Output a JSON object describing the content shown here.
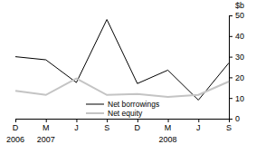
{
  "chart_data": {
    "type": "line",
    "y_label": "$b",
    "categories": [
      "D 2006",
      "M 2007",
      "J",
      "S",
      "D",
      "M 2008",
      "J",
      "S"
    ],
    "series": [
      {
        "name": "Net borrowings",
        "color": "#000000",
        "values": [
          30,
          28.5,
          17.5,
          48,
          17,
          23.5,
          9,
          27
        ]
      },
      {
        "name": "Net equity",
        "color": "#c4c4c4",
        "values": [
          13.5,
          11.5,
          19.5,
          11.5,
          12,
          10.5,
          11.5,
          18
        ]
      }
    ],
    "ylim": [
      0,
      50
    ],
    "yticks": [
      0,
      10,
      20,
      30,
      40,
      50
    ],
    "grid": false,
    "legend": "bottom-left"
  }
}
